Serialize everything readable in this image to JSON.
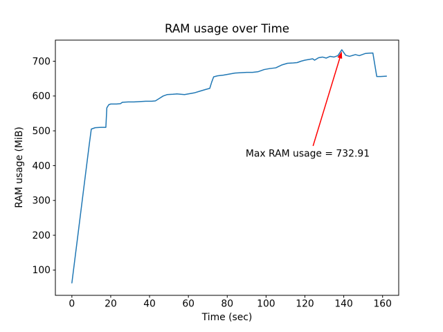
{
  "figure": {
    "background": "#ffffff"
  },
  "chart_data": {
    "type": "line",
    "title": "RAM usage over Time",
    "xlabel": "Time (sec)",
    "ylabel": "RAM usage (MiB)",
    "xlim": [
      -8.5,
      168.3
    ],
    "ylim": [
      27.3,
      760.6
    ],
    "x_ticks": [
      0,
      20,
      40,
      60,
      80,
      100,
      120,
      140,
      160
    ],
    "y_ticks": [
      100,
      200,
      300,
      400,
      500,
      600,
      700
    ],
    "grid": false,
    "legend": "none",
    "line_color": "#1f77b4",
    "line_width": 1.5,
    "series": [
      {
        "name": "RAM usage",
        "points": [
          [
            0,
            63
          ],
          [
            3,
            196
          ],
          [
            6,
            330
          ],
          [
            9,
            463
          ],
          [
            10,
            505
          ],
          [
            12,
            509
          ],
          [
            15,
            510
          ],
          [
            17.5,
            510
          ],
          [
            18,
            566
          ],
          [
            19,
            575
          ],
          [
            20,
            577
          ],
          [
            23,
            577
          ],
          [
            25,
            578
          ],
          [
            26,
            582
          ],
          [
            29,
            583
          ],
          [
            32,
            583
          ],
          [
            35,
            584
          ],
          [
            38,
            585
          ],
          [
            41,
            585
          ],
          [
            43,
            586
          ],
          [
            45,
            593
          ],
          [
            47,
            600
          ],
          [
            49,
            604
          ],
          [
            52,
            605
          ],
          [
            54,
            606
          ],
          [
            56,
            605
          ],
          [
            58,
            604
          ],
          [
            60,
            606
          ],
          [
            63,
            609
          ],
          [
            66,
            614
          ],
          [
            69,
            619
          ],
          [
            71,
            622
          ],
          [
            72,
            640
          ],
          [
            73,
            655
          ],
          [
            75,
            658
          ],
          [
            78,
            660
          ],
          [
            81,
            663
          ],
          [
            84,
            666
          ],
          [
            87,
            667
          ],
          [
            90,
            668
          ],
          [
            93,
            668
          ],
          [
            96,
            670
          ],
          [
            99,
            676
          ],
          [
            102,
            679
          ],
          [
            105,
            681
          ],
          [
            108,
            689
          ],
          [
            111,
            694
          ],
          [
            114,
            695
          ],
          [
            116,
            696
          ],
          [
            118,
            700
          ],
          [
            120,
            703
          ],
          [
            122,
            705
          ],
          [
            124,
            707
          ],
          [
            125,
            703
          ],
          [
            127,
            710
          ],
          [
            129,
            712
          ],
          [
            131,
            709
          ],
          [
            133,
            714
          ],
          [
            135,
            712
          ],
          [
            137,
            716
          ],
          [
            139,
            732.91
          ],
          [
            141,
            717
          ],
          [
            143,
            714
          ],
          [
            146,
            719
          ],
          [
            148,
            716
          ],
          [
            151,
            722
          ],
          [
            153,
            723
          ],
          [
            155,
            723.5
          ],
          [
            157,
            656
          ],
          [
            159,
            656
          ],
          [
            162,
            657
          ]
        ]
      }
    ],
    "max_point": {
      "x": 139,
      "y": 732.91
    },
    "annotation": {
      "text": "Max RAM usage = 732.91",
      "color": "#ff0000",
      "text_xy": [
        89.5,
        430
      ],
      "arrow_start_xy": [
        124.2,
        456.5
      ],
      "arrow_tip_xy": [
        139,
        732.91
      ]
    }
  }
}
